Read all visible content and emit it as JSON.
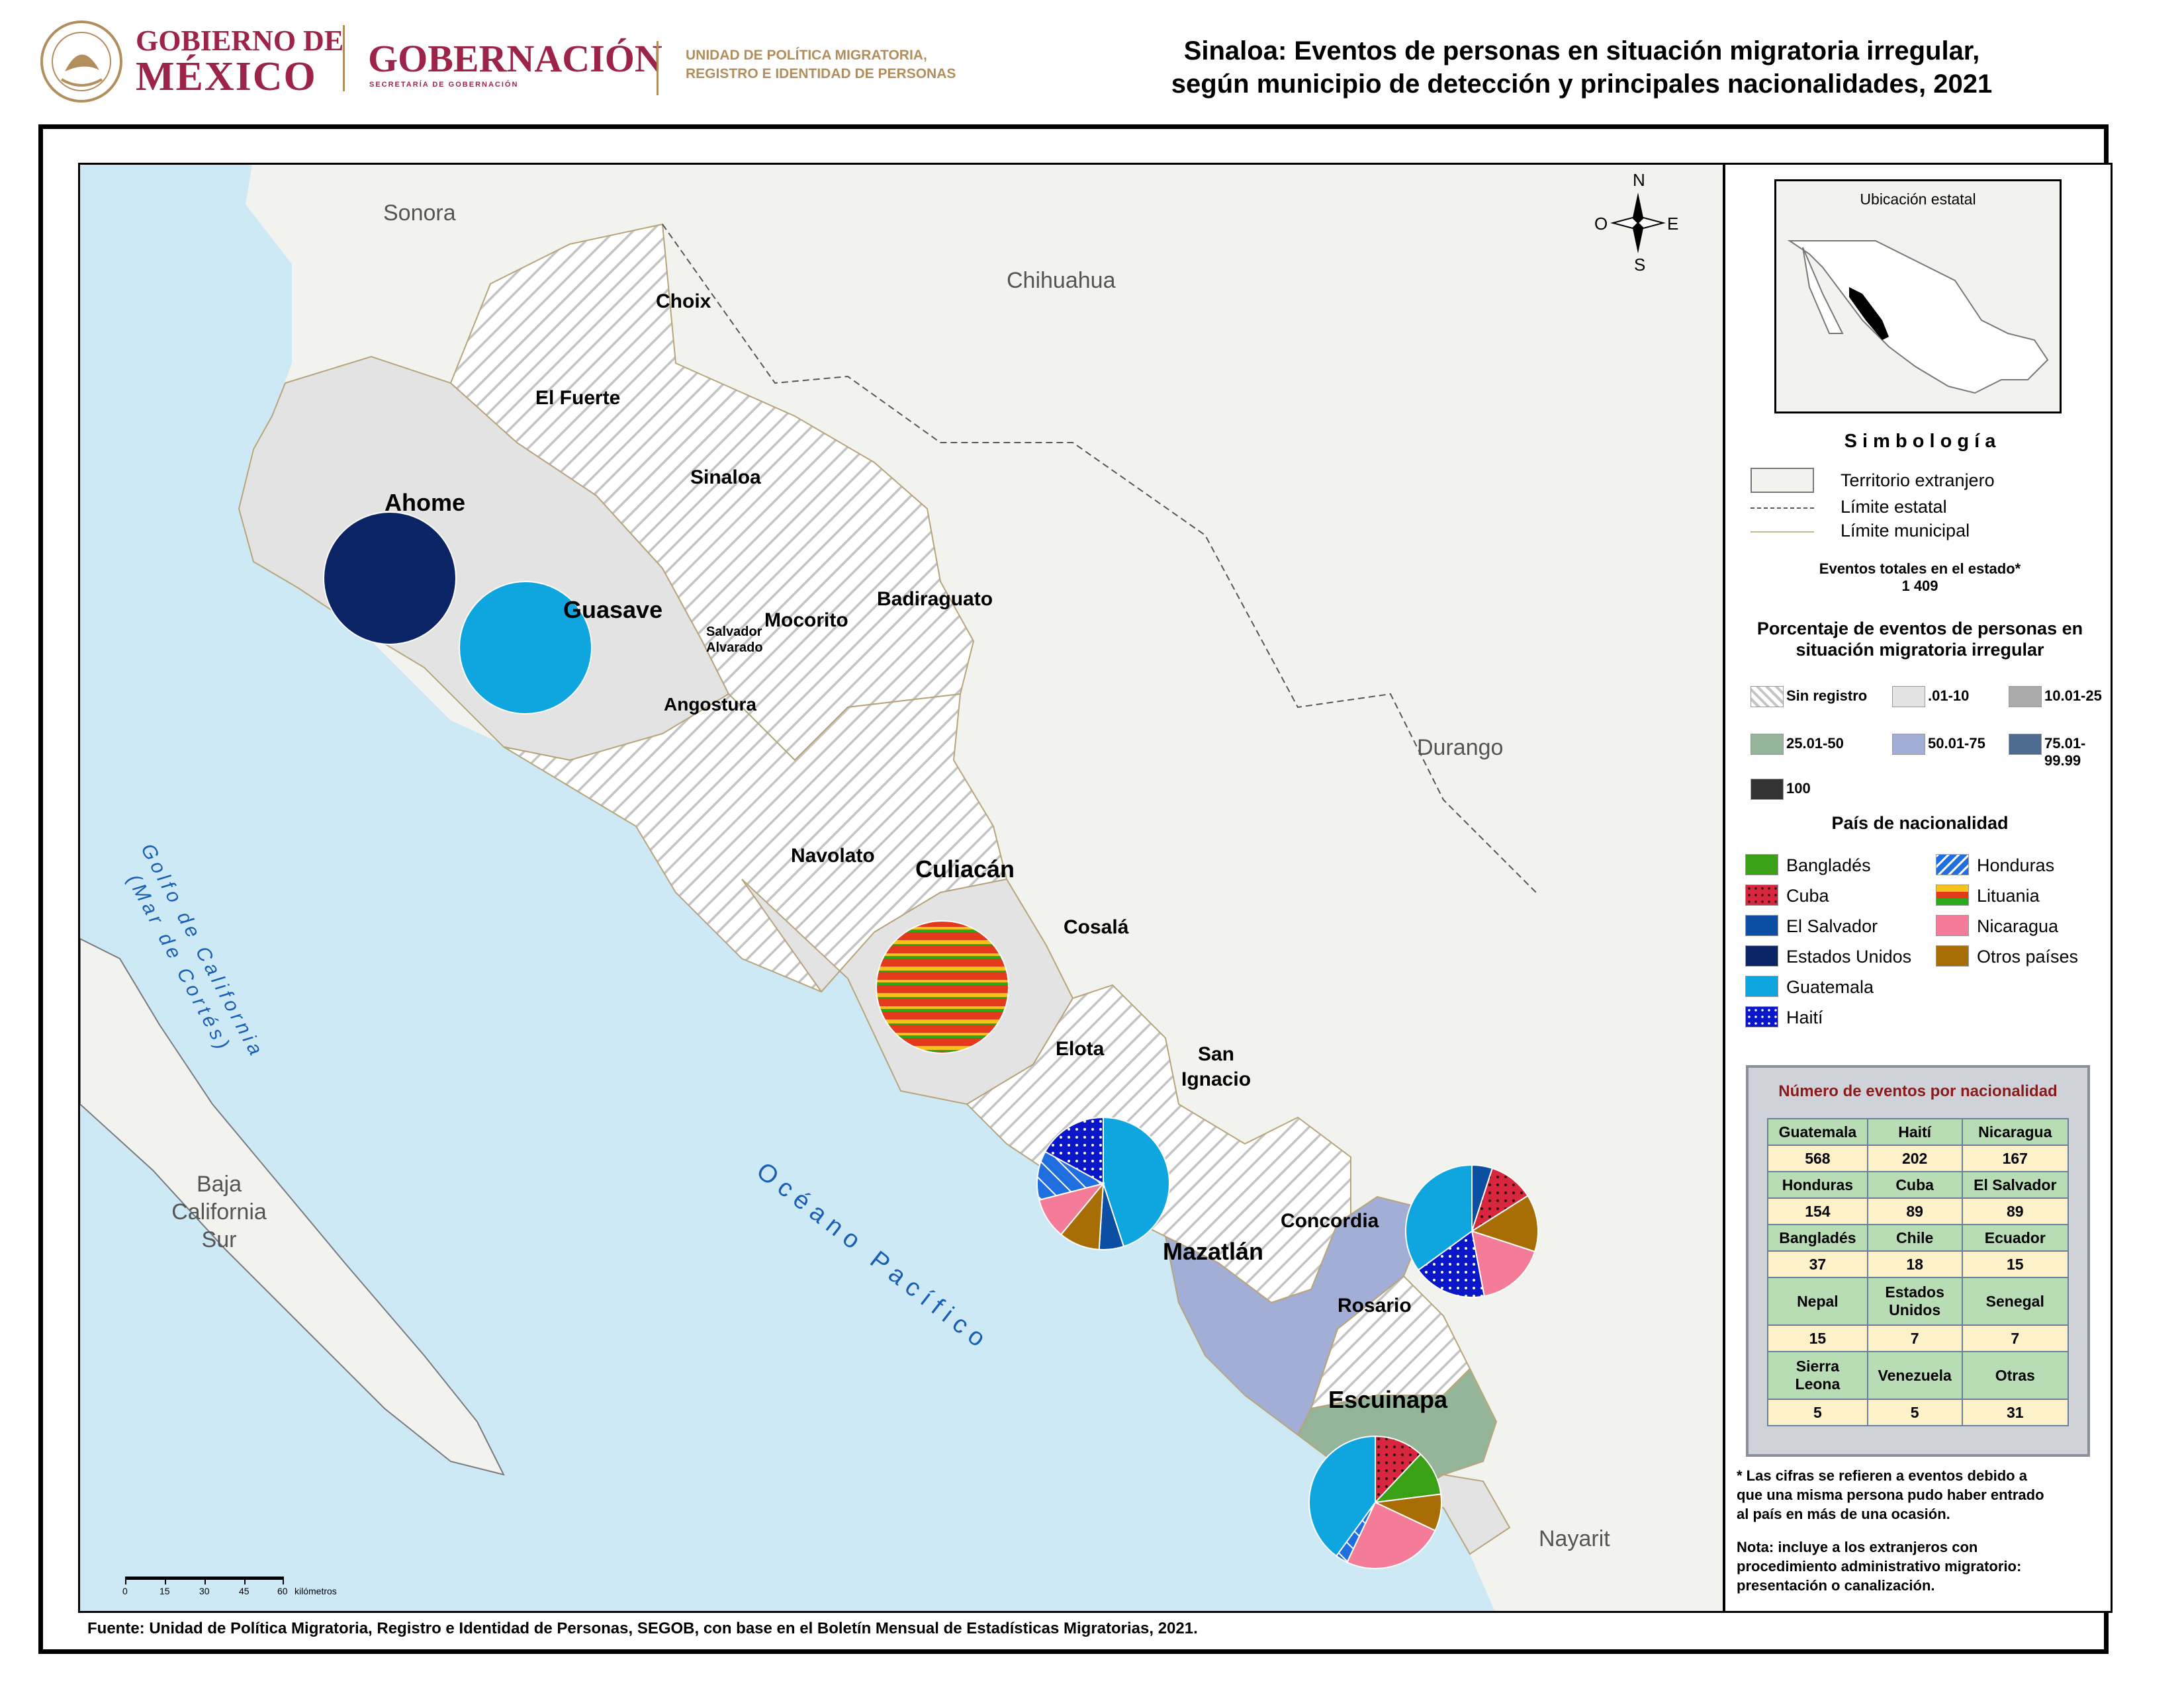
{
  "header": {
    "gov_line1": "GOBIERNO DE",
    "gov_line2": "MÉXICO",
    "secretaria": "GOBERNACIÓN",
    "secretaria_sub": "SECRETARÍA DE GOBERNACIÓN",
    "unit_line1": "UNIDAD DE POLÍTICA MIGRATORIA,",
    "unit_line2": "REGISTRO E IDENTIDAD DE PERSONAS",
    "title_line1": "Sinaloa: Eventos de personas en situación migratoria irregular,",
    "title_line2": "según municipio de detección y principales nacionalidades, 2021",
    "colors": {
      "brand": "#9d2449",
      "gold": "#b38e5d"
    }
  },
  "map": {
    "regions": {
      "sonora": "Sonora",
      "chihuahua": "Chihuahua",
      "durango": "Durango",
      "nayarit": "Nayarit",
      "baja_california_sur": [
        "Baja",
        "California",
        "Sur"
      ],
      "gulf": [
        "Golfo de California",
        "(Mar de Cortés)"
      ],
      "ocean": "O c é a n o   P a c í f i c o"
    },
    "municipalities": {
      "choix": "Choix",
      "el_fuerte": "El Fuerte",
      "sinaloa": "Sinaloa",
      "ahome": "Ahome",
      "guasave": "Guasave",
      "mocorito": "Mocorito",
      "badiraguato": "Badiraguato",
      "salvador_alvarado": [
        "Salvador",
        "Alvarado"
      ],
      "angostura": "Angostura",
      "navolato": "Navolato",
      "culiacan": "Culiacán",
      "cosala": "Cosalá",
      "elota": "Elota",
      "san_ignacio": [
        "San",
        "Ignacio"
      ],
      "mazatlan": "Mazatlán",
      "concordia": "Concordia",
      "rosario": "Rosario",
      "escuinapa": "Escuinapa"
    },
    "compass": {
      "n": "N",
      "s": "S",
      "e": "E",
      "w": "O"
    },
    "scale_ticks": [
      "0",
      "15",
      "30",
      "45",
      "60"
    ],
    "scale_unit": "kilómetros",
    "colors": {
      "sea": "#cde9f6",
      "foreign": "#f2f3ee",
      "light": "#e3e3e3",
      "mazatlan": "#a2aed6",
      "rosario": "#94b59a"
    }
  },
  "legend": {
    "location_title": "Ubicación estatal",
    "symbology_title": "S i m b o l o g í a",
    "territory": "Territorio extranjero",
    "state_limit": "Límite estatal",
    "muni_limit": "Límite municipal",
    "total_label": "Eventos totales en el estado*",
    "total_value": "1 409",
    "pct_title_1": "Porcentaje de eventos de personas en",
    "pct_title_2": "situación migratoria irregular",
    "pct_classes": [
      {
        "label": "Sin registro",
        "color": "hatch"
      },
      {
        "label": ".01-10",
        "color": "#e3e3e3"
      },
      {
        "label": "10.01-25",
        "color": "#aaaaaa"
      },
      {
        "label": "25.01-50",
        "color": "#94b59a"
      },
      {
        "label": "50.01-75",
        "color": "#a2aed6"
      },
      {
        "label": "75.01-99.99",
        "color": "#4d6a8f"
      },
      {
        "label": "100",
        "color": "#333333"
      }
    ],
    "nat_title": "País de nacionalidad",
    "nationalities": {
      "bangladesh": {
        "label": "Bangladés",
        "color": "#3aa117"
      },
      "cuba": {
        "label": "Cuba",
        "color": "#d7263d"
      },
      "el_salvador": {
        "label": "El Salvador",
        "color": "#0b4ea2"
      },
      "eeuu": {
        "label": "Estados Unidos",
        "color": "#0a2466"
      },
      "guatemala": {
        "label": "Guatemala",
        "color": "#0fa6e0"
      },
      "haiti": {
        "label": "Haití",
        "color": "#0a17c9"
      },
      "honduras": {
        "label": "Honduras",
        "color": "#1f6fe0"
      },
      "lituania": {
        "label": "Lituania",
        "color": "#e23a1b"
      },
      "nicaragua": {
        "label": "Nicaragua",
        "color": "#f47c98"
      },
      "otros": {
        "label": "Otros países",
        "color": "#a86d05"
      }
    },
    "table_title": "Número de eventos por nacionalidad",
    "table": [
      {
        "names": [
          "Guatemala",
          "Haití",
          "Nicaragua"
        ],
        "values": [
          "568",
          "202",
          "167"
        ]
      },
      {
        "names": [
          "Honduras",
          "Cuba",
          "El Salvador"
        ],
        "values": [
          "154",
          "89",
          "89"
        ]
      },
      {
        "names": [
          "Bangladés",
          "Chile",
          "Ecuador"
        ],
        "values": [
          "37",
          "18",
          "15"
        ]
      },
      {
        "names": [
          [
            "Nepal"
          ],
          [
            "Estados",
            "Unidos"
          ],
          [
            "Senegal"
          ]
        ],
        "values": [
          "15",
          "7",
          "7"
        ]
      },
      {
        "names": [
          [
            "Sierra",
            "Leona"
          ],
          [
            "Venezuela"
          ],
          [
            "Otras"
          ]
        ],
        "values": [
          "5",
          "5",
          "31"
        ]
      }
    ],
    "note1": [
      "* Las cifras se refieren a eventos debido a",
      "que una misma persona pudo haber entrado",
      "al país en más de una ocasión."
    ],
    "note2": [
      "Nota: incluye a los extranjeros con",
      "procedimiento administrativo migratorio:",
      "presentación o canalización."
    ]
  },
  "source": "Fuente: Unidad de Política Migratoria, Registro e Identidad de Personas, SEGOB, con base en el Boletín Mensual de Estadísticas Migratorias, 2021.",
  "pies": [
    {
      "municipio": "Ahome",
      "slices": [
        {
          "nat": "eeuu",
          "share": 100
        }
      ]
    },
    {
      "municipio": "Guasave",
      "slices": [
        {
          "nat": "guatemala",
          "share": 100
        }
      ]
    },
    {
      "municipio": "Culiacán",
      "slices": [
        {
          "nat": "lituania",
          "share": 100
        }
      ]
    },
    {
      "municipio": "Elota",
      "slices": [
        {
          "nat": "guatemala",
          "share": 45
        },
        {
          "nat": "el_salvador",
          "share": 6
        },
        {
          "nat": "otros",
          "share": 10
        },
        {
          "nat": "nicaragua",
          "share": 10
        },
        {
          "nat": "honduras",
          "share": 12
        },
        {
          "nat": "haiti",
          "share": 17
        }
      ]
    },
    {
      "municipio": "Rosario",
      "slices": [
        {
          "nat": "el_salvador",
          "share": 5
        },
        {
          "nat": "cuba",
          "share": 11
        },
        {
          "nat": "otros",
          "share": 14
        },
        {
          "nat": "nicaragua",
          "share": 17
        },
        {
          "nat": "haiti",
          "share": 18
        },
        {
          "nat": "guatemala",
          "share": 35
        }
      ]
    },
    {
      "municipio": "Escuinapa",
      "slices": [
        {
          "nat": "cuba",
          "share": 12
        },
        {
          "nat": "bangladesh",
          "share": 11
        },
        {
          "nat": "otros",
          "share": 9
        },
        {
          "nat": "nicaragua",
          "share": 25
        },
        {
          "nat": "honduras",
          "share": 3
        },
        {
          "nat": "guatemala",
          "share": 40
        }
      ]
    }
  ]
}
